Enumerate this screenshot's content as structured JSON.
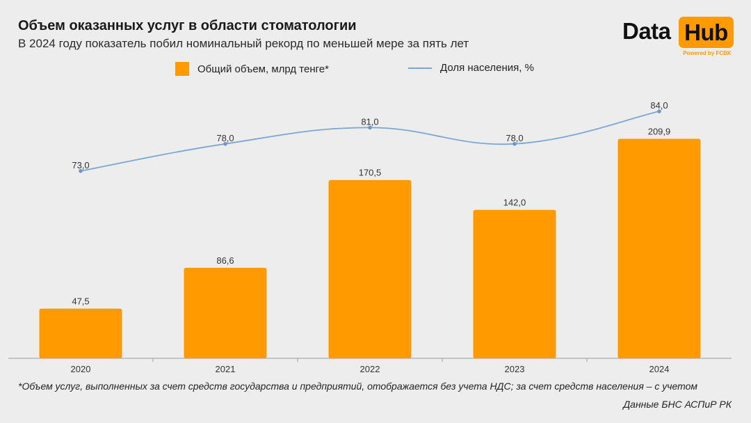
{
  "header": {
    "title": "Объем оказанных услуг в области стоматологии",
    "subtitle": "В 2024 году показатель побил номинальный рекорд по меньшей мере за пять лет"
  },
  "logo": {
    "word1": "Data",
    "word2": "Hub",
    "powered": "Powered by FCBK"
  },
  "legend": {
    "bars_label": "Общий объем, млрд тенге*",
    "line_label": "Доля населения, %"
  },
  "colors": {
    "bar": "#ff9a00",
    "line": "#7ba6d4",
    "line_dot": "#6e97c8",
    "label": "#333333",
    "axis": "#999999"
  },
  "chart_data": {
    "type": "bar",
    "categories": [
      "2020",
      "2021",
      "2022",
      "2023",
      "2024"
    ],
    "series": [
      {
        "name": "Общий объем, млрд тенге*",
        "type": "bar",
        "values": [
          47.5,
          86.6,
          170.5,
          142.0,
          209.9
        ],
        "labels": [
          "47,5",
          "86,6",
          "170,5",
          "142,0",
          "209,9"
        ]
      },
      {
        "name": "Доля населения, %",
        "type": "line",
        "values": [
          73.0,
          78.0,
          81.0,
          78.0,
          84.0
        ],
        "labels": [
          "73,0",
          "78,0",
          "81,0",
          "78,0",
          "84,0"
        ]
      }
    ],
    "grid": false,
    "legend_position": "top"
  },
  "footer": {
    "footnote": "*Объем услуг, выполненных за счет средств государства и предприятий, отображается без учета НДС; за счет средств населения – с учетом",
    "source": "Данные БНС АСПиР РК"
  }
}
